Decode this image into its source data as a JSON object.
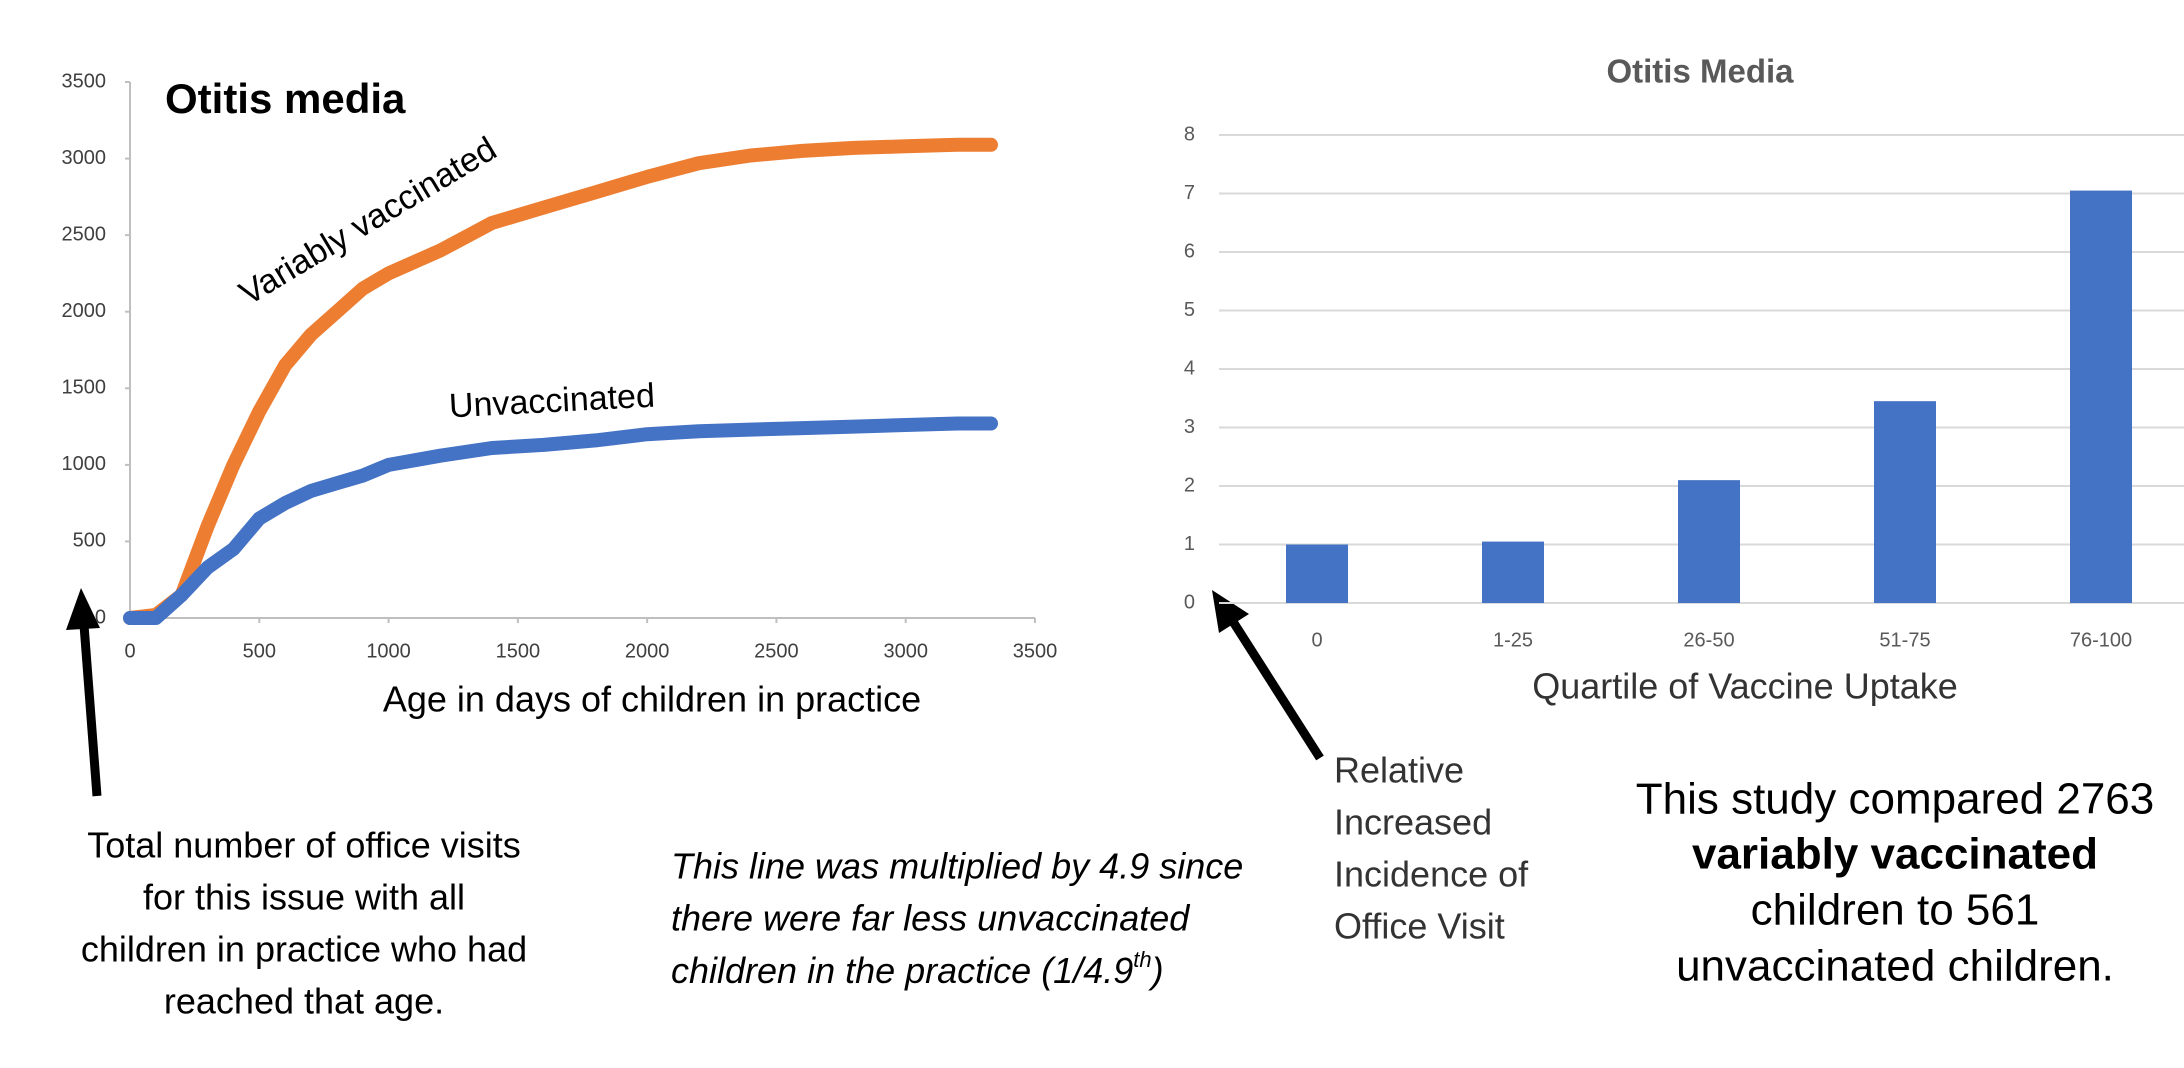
{
  "chart_data": [
    {
      "type": "line",
      "title": "Otitis media",
      "x_label": "Age in days of children in practice",
      "x": [
        0,
        100,
        200,
        300,
        400,
        500,
        600,
        700,
        800,
        900,
        1000,
        1200,
        1400,
        1600,
        1800,
        2000,
        2200,
        2400,
        2600,
        2800,
        3000,
        3200,
        3330
      ],
      "series": [
        {
          "name": "Variably vaccinated",
          "color": "#ed7d31",
          "values": [
            0,
            20,
            150,
            600,
            1000,
            1350,
            1650,
            1850,
            2000,
            2150,
            2250,
            2400,
            2580,
            2680,
            2780,
            2880,
            2970,
            3020,
            3050,
            3070,
            3080,
            3090,
            3090
          ]
        },
        {
          "name": "Unvaccinated",
          "color": "#4472c4",
          "values": [
            0,
            0,
            150,
            330,
            450,
            650,
            750,
            830,
            880,
            930,
            1000,
            1060,
            1110,
            1130,
            1160,
            1200,
            1220,
            1230,
            1240,
            1250,
            1260,
            1270,
            1270
          ]
        }
      ],
      "xlim": [
        0,
        3500
      ],
      "xticks": [
        0,
        500,
        1000,
        1500,
        2000,
        2500,
        3000,
        3500
      ],
      "ylim": [
        0,
        3500
      ],
      "yticks": [
        0,
        500,
        1000,
        1500,
        2000,
        2500,
        3000,
        3500
      ]
    },
    {
      "type": "bar",
      "title": "Otitis Media",
      "x_label": "Quartile of Vaccine Uptake",
      "categories": [
        "0",
        "1-25",
        "26-50",
        "51-75",
        "76-100"
      ],
      "values": [
        1,
        1.05,
        2.1,
        3.45,
        7.05
      ],
      "color": "#4472c4",
      "ylim": [
        0,
        8
      ],
      "yticks": [
        0,
        1,
        2,
        3,
        4,
        5,
        6,
        7,
        8
      ],
      "grid": true
    }
  ],
  "annotations": {
    "left_note": [
      "Total number of office visits",
      "for this issue with all",
      "children in practice who had",
      "reached that age."
    ],
    "multiplier_note": [
      "This line was multiplied by 4.9 since",
      "there were far less unvaccinated",
      "children in the practice (1/4.9",
      "th",
      ")"
    ],
    "bar_axis_note": [
      "Relative",
      "Increased",
      "Incidence of",
      "Office Visit"
    ],
    "study_note": [
      "This study compared 2763",
      "variably vaccinated",
      "children to 561",
      "unvaccinated children."
    ]
  }
}
